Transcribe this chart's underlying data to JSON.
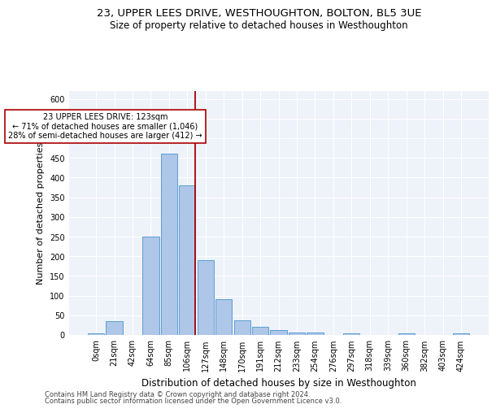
{
  "title": "23, UPPER LEES DRIVE, WESTHOUGHTON, BOLTON, BL5 3UE",
  "subtitle": "Size of property relative to detached houses in Westhoughton",
  "xlabel": "Distribution of detached houses by size in Westhoughton",
  "ylabel": "Number of detached properties",
  "bin_labels": [
    "0sqm",
    "21sqm",
    "42sqm",
    "64sqm",
    "85sqm",
    "106sqm",
    "127sqm",
    "148sqm",
    "170sqm",
    "191sqm",
    "212sqm",
    "233sqm",
    "254sqm",
    "276sqm",
    "297sqm",
    "318sqm",
    "339sqm",
    "360sqm",
    "382sqm",
    "403sqm",
    "424sqm"
  ],
  "bar_values": [
    5,
    35,
    0,
    250,
    460,
    380,
    190,
    90,
    38,
    20,
    13,
    7,
    7,
    0,
    5,
    0,
    0,
    5,
    0,
    0,
    5
  ],
  "bar_color": "#aec6e8",
  "bar_edge_color": "#5a9fd4",
  "vline_color": "#aa0000",
  "vline_pos": 5.45,
  "annotation_text": "23 UPPER LEES DRIVE: 123sqm\n← 71% of detached houses are smaller (1,046)\n28% of semi-detached houses are larger (412) →",
  "annotation_box_color": "#ffffff",
  "annotation_box_edge_color": "#aa0000",
  "ylim": [
    0,
    620
  ],
  "yticks": [
    0,
    50,
    100,
    150,
    200,
    250,
    300,
    350,
    400,
    450,
    500,
    550,
    600
  ],
  "footer1": "Contains HM Land Registry data © Crown copyright and database right 2024.",
  "footer2": "Contains public sector information licensed under the Open Government Licence v3.0.",
  "title_fontsize": 9.5,
  "subtitle_fontsize": 8.5,
  "xlabel_fontsize": 8.5,
  "ylabel_fontsize": 8,
  "tick_fontsize": 7,
  "annotation_fontsize": 7,
  "footer_fontsize": 6,
  "bg_color": "#eef2f9"
}
